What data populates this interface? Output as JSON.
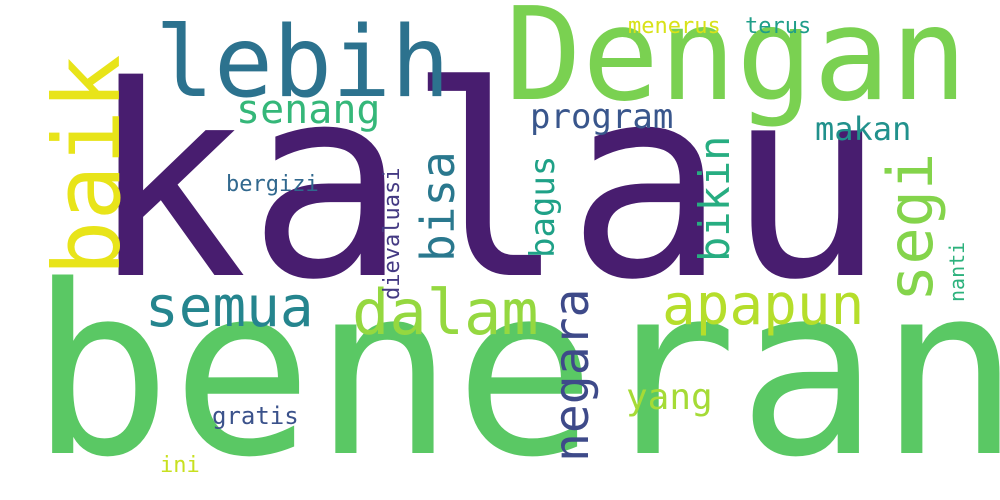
{
  "background_color": "#ffffff",
  "words": {
    "kalau": {
      "text": "kalau",
      "color": "#481d6f"
    },
    "beneran": {
      "text": "beneran",
      "color": "#5ac864"
    },
    "dengan": {
      "text": "Dengan",
      "color": "#7ad151"
    },
    "lebih": {
      "text": "lebih",
      "color": "#2c728e"
    },
    "baik": {
      "text": "baik",
      "color": "#e8e419"
    },
    "senang": {
      "text": "senang",
      "color": "#35b779"
    },
    "program": {
      "text": "program",
      "color": "#39568c"
    },
    "makan": {
      "text": "makan",
      "color": "#21918c"
    },
    "segi": {
      "text": "segi",
      "color": "#84d44b"
    },
    "bisa": {
      "text": "bisa",
      "color": "#2a788e"
    },
    "bikin": {
      "text": "bikin",
      "color": "#27ad81"
    },
    "bagus": {
      "text": "bagus",
      "color": "#1fa187"
    },
    "semua": {
      "text": "semua",
      "color": "#25858e"
    },
    "dalam": {
      "text": "dalam",
      "color": "#95d840"
    },
    "apapun": {
      "text": "apapun",
      "color": "#b5de2b"
    },
    "negara": {
      "text": "negara",
      "color": "#3e4a89"
    },
    "yang": {
      "text": "yang",
      "color": "#a5db36"
    },
    "gratis": {
      "text": "gratis",
      "color": "#3b528b"
    },
    "ini": {
      "text": "ini",
      "color": "#c8e020"
    },
    "bergizi": {
      "text": "bergizi",
      "color": "#31688e"
    },
    "dievaluasi": {
      "text": "dievaluasi",
      "color": "#443a83"
    },
    "menerus": {
      "text": "menerus",
      "color": "#d8e219"
    },
    "terus": {
      "text": "terus",
      "color": "#1f9e89"
    },
    "nanti": {
      "text": "nanti",
      "color": "#2db27d"
    }
  }
}
